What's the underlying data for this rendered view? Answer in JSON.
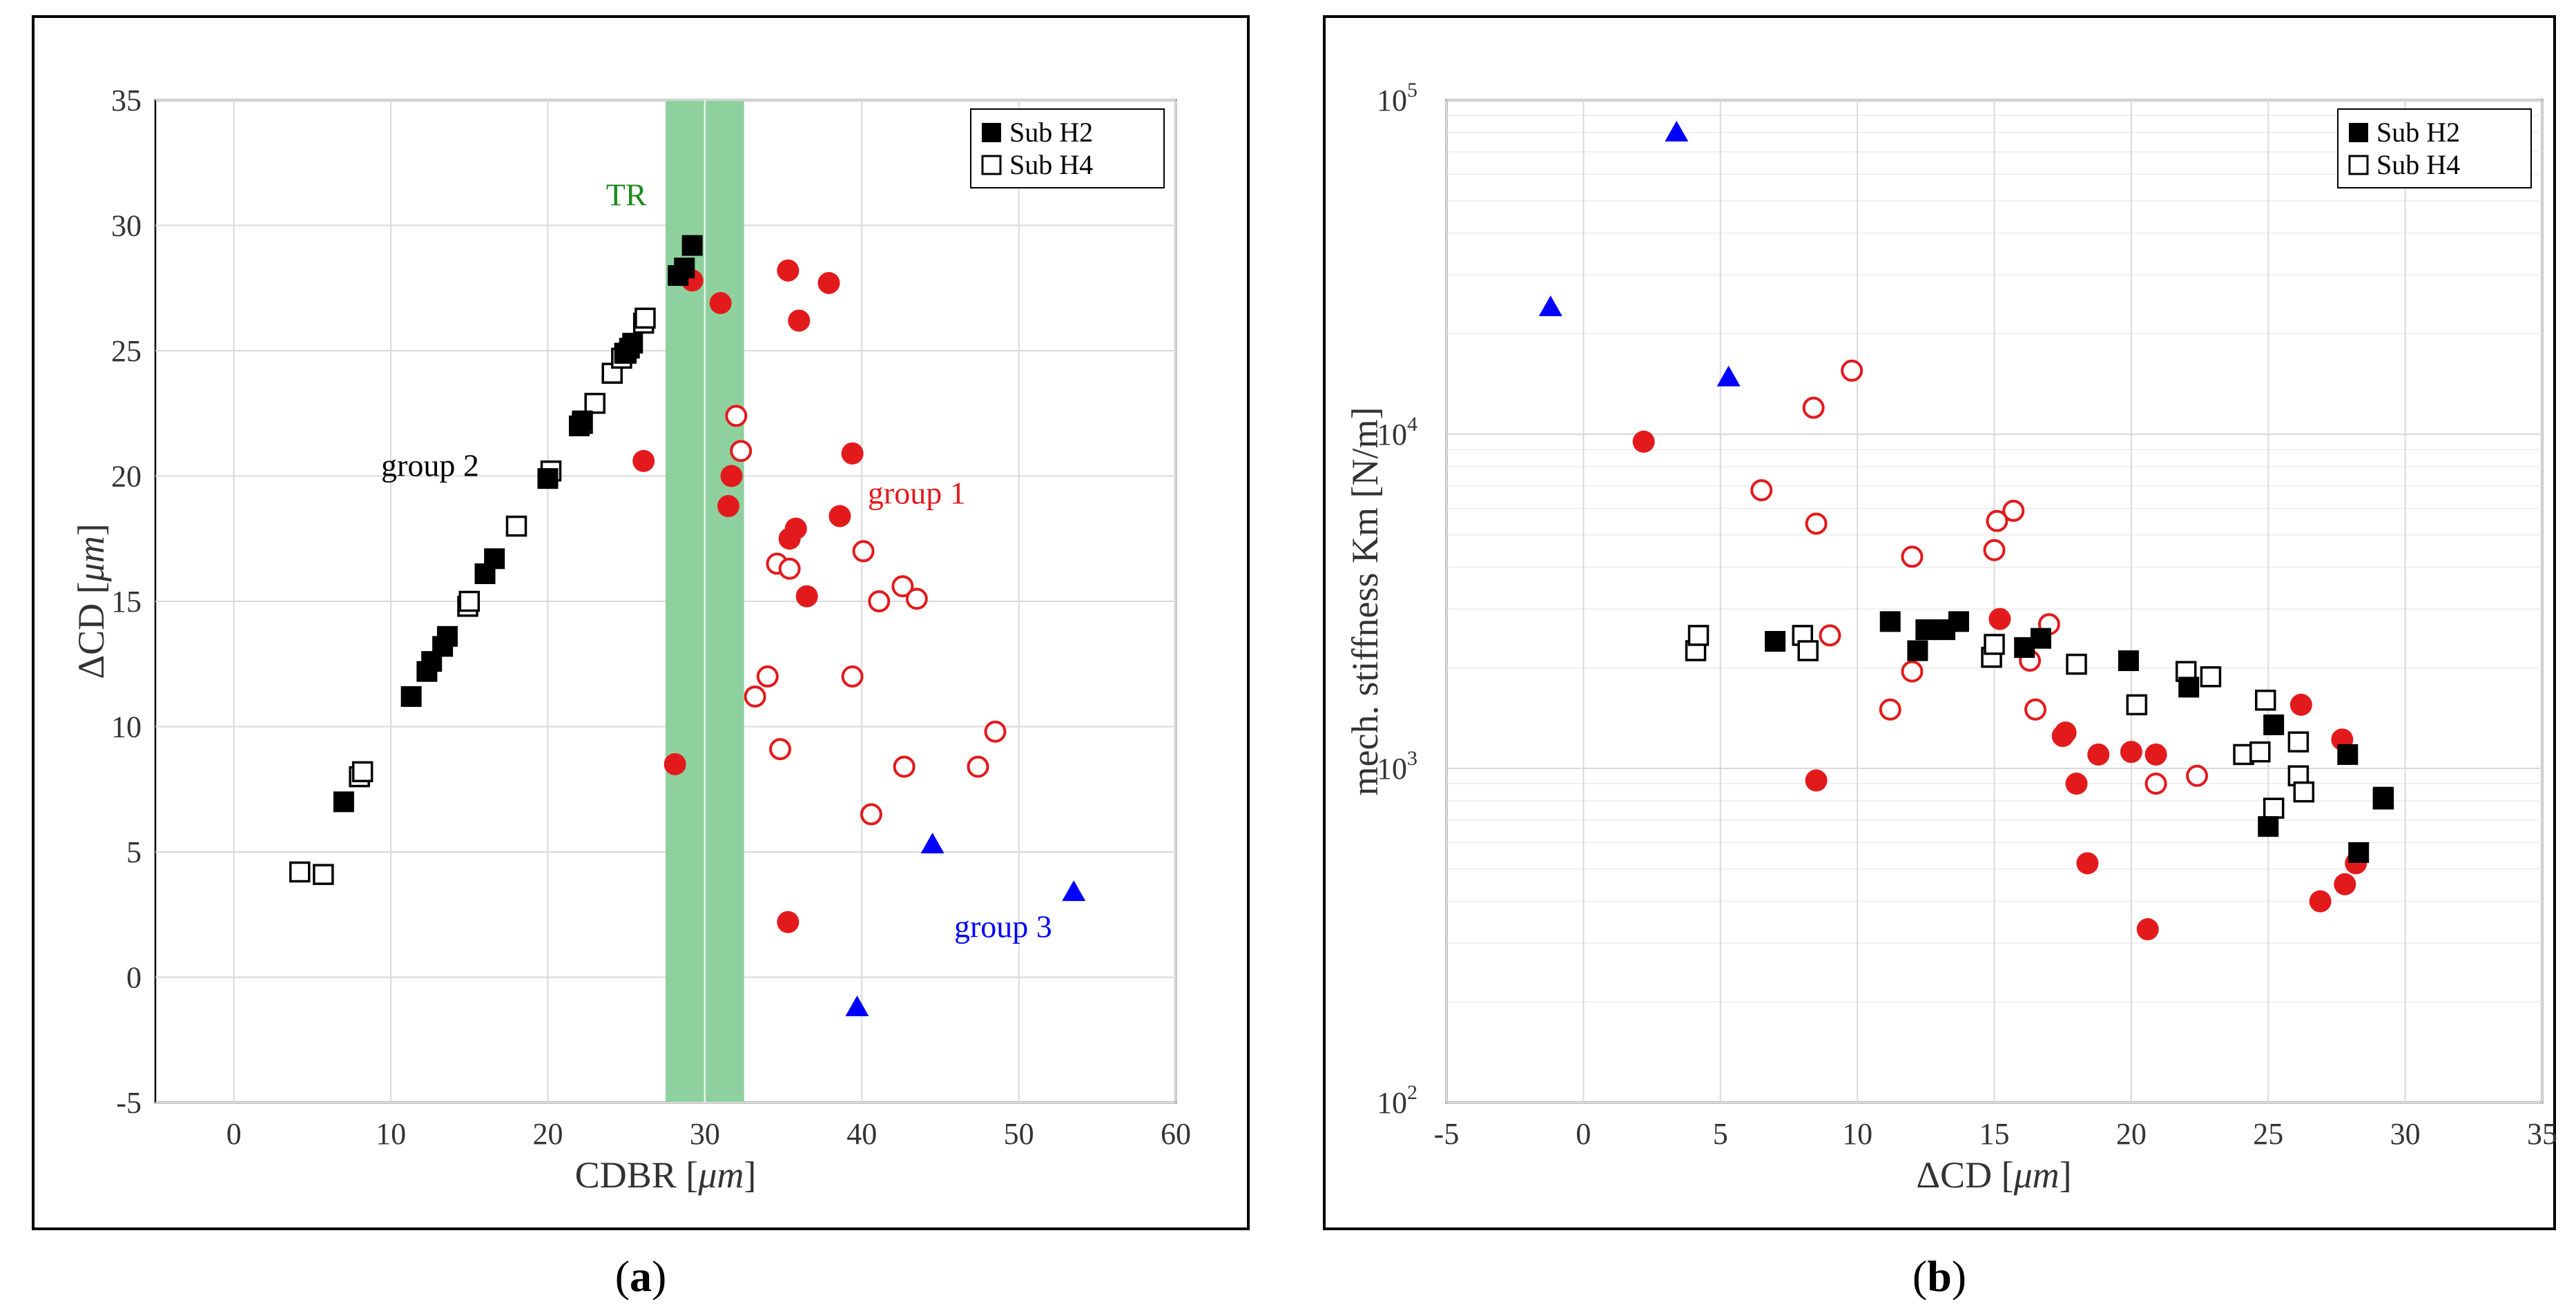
{
  "chart_data": [
    {
      "type": "scatter",
      "caption_letter": "a",
      "xlabel_main": "CDBR [",
      "xlabel_unit": "μm",
      "xlabel_tail": "]",
      "ylabel_main": "ΔCD [",
      "ylabel_unit": "μm",
      "ylabel_tail": "]",
      "xlim": [
        -5,
        60
      ],
      "ylim": [
        -5,
        35
      ],
      "xticks": [
        "0",
        "10",
        "20",
        "30",
        "40",
        "50",
        "60"
      ],
      "xtick_values": [
        0,
        10,
        20,
        30,
        40,
        50,
        60
      ],
      "yticks": [
        "-5",
        "0",
        "5",
        "10",
        "15",
        "20",
        "25",
        "30",
        "35"
      ],
      "ytick_values": [
        -5,
        0,
        5,
        10,
        15,
        20,
        25,
        30,
        35
      ],
      "grid": true,
      "legend_position": "top-right",
      "band": {
        "label": "TR",
        "x_range": [
          27.5,
          32.5
        ],
        "color": "#8fd19e",
        "label_color": "#1a8a1a"
      },
      "annotations": [
        {
          "text": "group 2",
          "x": 12.5,
          "y": 20,
          "color": "#000000"
        },
        {
          "text": "group 1",
          "x": 43.5,
          "y": 18.9,
          "color": "#e31a1c"
        },
        {
          "text": "group 3",
          "x": 49,
          "y": 1.6,
          "color": "#0000ff"
        }
      ],
      "series": [
        {
          "name": "Sub H2",
          "marker": "filled-square",
          "color": "#000000",
          "points": [
            [
              7,
              7
            ],
            [
              11.3,
              11.2
            ],
            [
              12.3,
              12.2
            ],
            [
              12.6,
              12.6
            ],
            [
              13.3,
              13.2
            ],
            [
              13.6,
              13.6
            ],
            [
              16,
              16.1
            ],
            [
              16.6,
              16.7
            ],
            [
              20,
              19.9
            ],
            [
              22,
              22
            ],
            [
              22.2,
              22.2
            ],
            [
              25,
              24.9
            ],
            [
              25.2,
              25.1
            ],
            [
              25.4,
              25.3
            ],
            [
              28.3,
              28
            ],
            [
              28.7,
              28.3
            ],
            [
              29.2,
              29.2
            ]
          ]
        },
        {
          "name": "Sub H4",
          "marker": "open-square",
          "color": "#000000",
          "points": [
            [
              4.2,
              4.2
            ],
            [
              5.7,
              4.1
            ],
            [
              8,
              8
            ],
            [
              8.2,
              8.2
            ],
            [
              14.9,
              14.8
            ],
            [
              15,
              15
            ],
            [
              18,
              18
            ],
            [
              20.2,
              20.2
            ],
            [
              22.2,
              22.1
            ],
            [
              23,
              22.9
            ],
            [
              24.1,
              24.1
            ],
            [
              24.7,
              24.7
            ],
            [
              24.9,
              24.9
            ],
            [
              26.1,
              26.1
            ],
            [
              26.2,
              26.3
            ]
          ]
        },
        {
          "marker": "filled-circle",
          "color": "#e31a1c",
          "points": [
            [
              29.2,
              27.8
            ],
            [
              31,
              26.9
            ],
            [
              35.3,
              28.2
            ],
            [
              36,
              26.2
            ],
            [
              37.9,
              27.7
            ],
            [
              26.1,
              20.6
            ],
            [
              31.7,
              20
            ],
            [
              31.5,
              18.8
            ],
            [
              39.4,
              20.9
            ],
            [
              38.6,
              18.4
            ],
            [
              35.4,
              17.5
            ],
            [
              35.8,
              17.9
            ],
            [
              36.5,
              15.2
            ],
            [
              28.1,
              8.5
            ],
            [
              35.3,
              2.2
            ]
          ]
        },
        {
          "marker": "open-circle",
          "color": "#e31a1c",
          "points": [
            [
              32,
              22.4
            ],
            [
              32.3,
              21
            ],
            [
              34.6,
              16.5
            ],
            [
              35.4,
              16.3
            ],
            [
              40.1,
              17
            ],
            [
              41.1,
              15
            ],
            [
              42.6,
              15.6
            ],
            [
              43.5,
              15.1
            ],
            [
              33.2,
              11.2
            ],
            [
              34,
              12
            ],
            [
              39.4,
              12
            ],
            [
              34.8,
              9.1
            ],
            [
              42.7,
              8.4
            ],
            [
              47.4,
              8.4
            ],
            [
              48.5,
              9.8
            ],
            [
              40.6,
              6.5
            ]
          ]
        },
        {
          "marker": "triangle",
          "color": "#0000ff",
          "points": [
            [
              44.5,
              5.3
            ],
            [
              53.5,
              3.4
            ],
            [
              39.7,
              -1.2
            ]
          ]
        }
      ]
    },
    {
      "type": "scatter",
      "caption_letter": "b",
      "xlabel_main": "ΔCD [",
      "xlabel_unit": "μm",
      "xlabel_tail": "]",
      "ylabel": "mech. stiffness Km [N/m]",
      "xlim": [
        -5,
        35
      ],
      "ylim": [
        100,
        100000
      ],
      "yscale": "log",
      "xticks": [
        "-5",
        "0",
        "5",
        "10",
        "15",
        "20",
        "25",
        "30",
        "35"
      ],
      "xtick_values": [
        -5,
        0,
        5,
        10,
        15,
        20,
        25,
        30,
        35
      ],
      "ytick_base": "10",
      "ytick_exponents": [
        "2",
        "3",
        "4",
        "5"
      ],
      "grid": true,
      "legend_position": "top-right",
      "series": [
        {
          "name": "Sub H2",
          "marker": "filled-square",
          "color": "#000000",
          "points": [
            [
              7,
              2400
            ],
            [
              11.2,
              2750
            ],
            [
              12.2,
              2250
            ],
            [
              12.5,
              2600
            ],
            [
              13.2,
              2600
            ],
            [
              13.7,
              2750
            ],
            [
              16.1,
              2300
            ],
            [
              16.7,
              2450
            ],
            [
              19.9,
              2100
            ],
            [
              22.1,
              1750
            ],
            [
              25.2,
              1350
            ],
            [
              25,
              670
            ],
            [
              27.9,
              1100
            ],
            [
              28.3,
              560
            ],
            [
              29.2,
              820
            ]
          ]
        },
        {
          "name": "Sub H4",
          "marker": "open-square",
          "color": "#000000",
          "points": [
            [
              4.1,
              2250
            ],
            [
              4.2,
              2500
            ],
            [
              8,
              2500
            ],
            [
              8.2,
              2250
            ],
            [
              14.9,
              2150
            ],
            [
              15,
              2350
            ],
            [
              18,
              2050
            ],
            [
              20.2,
              1550
            ],
            [
              22,
              1950
            ],
            [
              22.9,
              1880
            ],
            [
              24.1,
              1100
            ],
            [
              24.7,
              1120
            ],
            [
              24.9,
              1600
            ],
            [
              25.2,
              760
            ],
            [
              26.1,
              1200
            ],
            [
              26.1,
              950
            ],
            [
              26.3,
              850
            ],
            [
              29.2,
              810
            ]
          ]
        },
        {
          "marker": "filled-circle",
          "color": "#e31a1c",
          "points": [
            [
              2.2,
              9500
            ],
            [
              8.5,
              920
            ],
            [
              15.2,
              2800
            ],
            [
              17.5,
              1250
            ],
            [
              17.6,
              1280
            ],
            [
              18,
              900
            ],
            [
              18.8,
              1100
            ],
            [
              18.4,
              520
            ],
            [
              20,
              1120
            ],
            [
              20.9,
              1100
            ],
            [
              20.6,
              330
            ],
            [
              26.2,
              1550
            ],
            [
              27.7,
              1220
            ],
            [
              27.8,
              450
            ],
            [
              28.2,
              520
            ],
            [
              26.9,
              400
            ]
          ]
        },
        {
          "marker": "open-circle",
          "color": "#e31a1c",
          "points": [
            [
              9.8,
              15500
            ],
            [
              8.4,
              12000
            ],
            [
              6.5,
              6800
            ],
            [
              8.5,
              5400
            ],
            [
              12,
              4300
            ],
            [
              15.7,
              5900
            ],
            [
              15.1,
              5500
            ],
            [
              15,
              4500
            ],
            [
              17,
              2700
            ],
            [
              9,
              2500
            ],
            [
              16.3,
              2100
            ],
            [
              12,
              1950
            ],
            [
              11.2,
              1500
            ],
            [
              16.5,
              1500
            ],
            [
              20.9,
              900
            ],
            [
              22.4,
              950
            ]
          ]
        },
        {
          "marker": "triangle",
          "color": "#0000ff",
          "points": [
            [
              3.4,
              80000
            ],
            [
              -1.2,
              24000
            ],
            [
              5.3,
              14800
            ]
          ]
        }
      ]
    }
  ]
}
